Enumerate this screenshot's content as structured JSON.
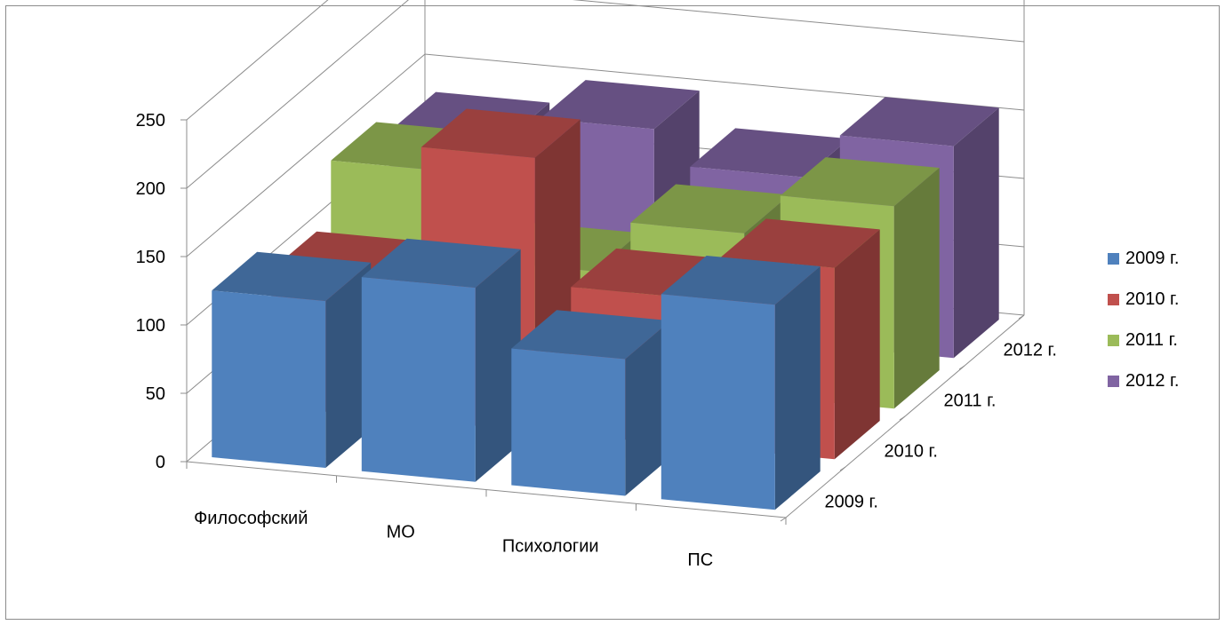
{
  "chart_data": {
    "type": "bar",
    "variant": "3d-column",
    "categories": [
      "Философский",
      "МО",
      "Психологии",
      "ПС"
    ],
    "depth_labels": [
      "2009 г.",
      "2010 г.",
      "2011 г.",
      "2012 г."
    ],
    "series": [
      {
        "name": "2009 г.",
        "color": "#4f81bd",
        "values": [
          122,
          142,
          100,
          150
        ]
      },
      {
        "name": "2010 г.",
        "color": "#c0504d",
        "values": [
          100,
          200,
          108,
          140
        ]
      },
      {
        "name": "2011 г.",
        "color": "#9bbb59",
        "values": [
          143,
          80,
          118,
          148
        ]
      },
      {
        "name": "2012 г.",
        "color": "#8064a2",
        "values": [
          128,
          147,
          122,
          155
        ]
      }
    ],
    "yticks": [
      "0",
      "50",
      "100",
      "150",
      "200",
      "250"
    ],
    "ylim": [
      0,
      250
    ],
    "grid": true,
    "legend": "right"
  },
  "legend": {
    "items": [
      {
        "label": "2009 г.",
        "color": "#4f81bd"
      },
      {
        "label": "2010 г.",
        "color": "#c0504d"
      },
      {
        "label": "2011 г.",
        "color": "#9bbb59"
      },
      {
        "label": "2012 г.",
        "color": "#8064a2"
      }
    ]
  }
}
